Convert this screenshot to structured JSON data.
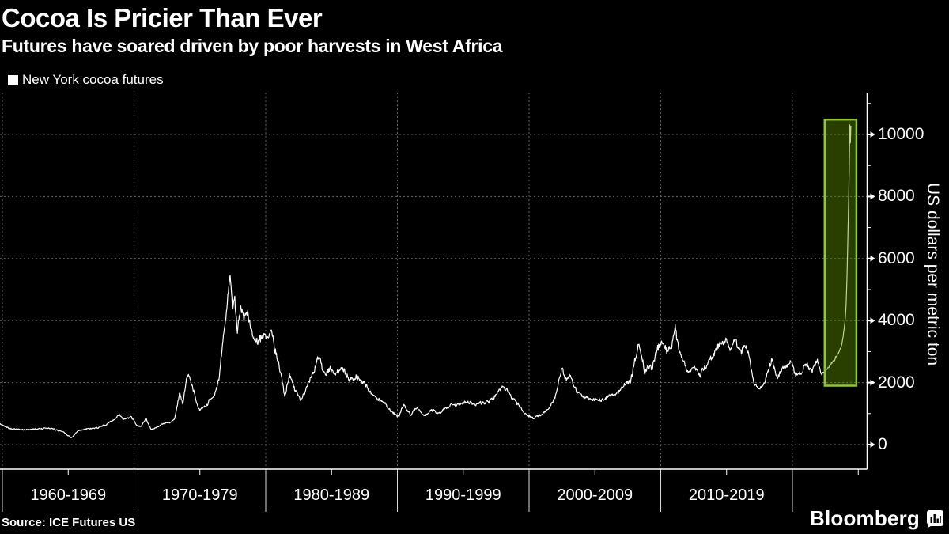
{
  "title": "Cocoa Is Pricier Than Ever",
  "subtitle": "Futures have soared driven by poor harvests in West Africa",
  "legend": {
    "label": "New York cocoa futures",
    "swatch_color": "#ffffff"
  },
  "source": "Source: ICE Futures US",
  "brand": {
    "name": "Bloomberg",
    "icon": "bar-chart-bubble-icon"
  },
  "colors": {
    "background": "#000000",
    "text": "#ffffff",
    "grid": "#646464",
    "line": "#ffffff",
    "axis": "#ffffff",
    "highlight_border": "#8dc63f",
    "highlight_fill": "#5f9600"
  },
  "chart_data": {
    "type": "line",
    "series": [
      {
        "name": "New York cocoa futures",
        "color": "#ffffff"
      }
    ],
    "title": "Cocoa Is Pricier Than Ever",
    "subtitle": "Futures have soared driven by poor harvests in West Africa",
    "ylabel": "US dollars per metric ton",
    "xlabel": "",
    "grid": true,
    "legend_position": "top-left",
    "ylim": [
      0,
      11350
    ],
    "y_ticks": [
      0,
      2000,
      4000,
      6000,
      8000,
      10000
    ],
    "y_minor_ticks": [
      1000,
      3000,
      5000,
      7000,
      9000,
      11000
    ],
    "x_range_years": [
      1959.8,
      2024.44
    ],
    "decades": [
      {
        "start": 1960,
        "label": "1960-1969"
      },
      {
        "start": 1970,
        "label": "1970-1979"
      },
      {
        "start": 1980,
        "label": "1980-1989"
      },
      {
        "start": 1990,
        "label": "1990-1999"
      },
      {
        "start": 2000,
        "label": "2000-2009"
      },
      {
        "start": 2010,
        "label": "2010-2019"
      },
      {
        "start": 2020,
        "label": ""
      }
    ],
    "highlight_box": {
      "year_start": 2022.45,
      "year_end": 2024.86,
      "value_low": 1900,
      "value_high": 10480
    },
    "anchors": [
      [
        1959.8,
        660
      ],
      [
        1960.3,
        580
      ],
      [
        1961,
        500
      ],
      [
        1961.8,
        470
      ],
      [
        1962.5,
        510
      ],
      [
        1963.2,
        540
      ],
      [
        1964,
        470
      ],
      [
        1964.6,
        430
      ],
      [
        1965.25,
        230
      ],
      [
        1965.7,
        420
      ],
      [
        1966.3,
        490
      ],
      [
        1967,
        550
      ],
      [
        1967.8,
        620
      ],
      [
        1968.5,
        800
      ],
      [
        1968.8,
        950
      ],
      [
        1969.2,
        840
      ],
      [
        1969.7,
        910
      ],
      [
        1970.2,
        620
      ],
      [
        1970.5,
        560
      ],
      [
        1970.9,
        790
      ],
      [
        1971.3,
        490
      ],
      [
        1971.9,
        560
      ],
      [
        1972.6,
        690
      ],
      [
        1973.1,
        850
      ],
      [
        1973.45,
        1600
      ],
      [
        1973.7,
        1280
      ],
      [
        1974.1,
        2400
      ],
      [
        1974.5,
        1850
      ],
      [
        1975.0,
        1120
      ],
      [
        1975.5,
        1320
      ],
      [
        1976.0,
        1520
      ],
      [
        1976.45,
        2150
      ],
      [
        1976.75,
        3300
      ],
      [
        1977.05,
        4650
      ],
      [
        1977.3,
        5360
      ],
      [
        1977.5,
        4250
      ],
      [
        1977.65,
        4600
      ],
      [
        1977.85,
        3750
      ],
      [
        1978.1,
        4300
      ],
      [
        1978.35,
        3850
      ],
      [
        1978.6,
        4150
      ],
      [
        1979.0,
        3500
      ],
      [
        1979.4,
        3280
      ],
      [
        1979.8,
        3480
      ],
      [
        1980.2,
        3300
      ],
      [
        1980.55,
        3420
      ],
      [
        1981.0,
        2550
      ],
      [
        1981.45,
        1580
      ],
      [
        1981.8,
        2280
      ],
      [
        1982.2,
        1830
      ],
      [
        1982.65,
        1480
      ],
      [
        1983.1,
        1850
      ],
      [
        1983.6,
        2250
      ],
      [
        1984.05,
        2800
      ],
      [
        1984.5,
        2380
      ],
      [
        1984.9,
        2620
      ],
      [
        1985.3,
        2230
      ],
      [
        1985.8,
        2420
      ],
      [
        1986.3,
        2080
      ],
      [
        1986.9,
        2180
      ],
      [
        1987.4,
        2020
      ],
      [
        1988.0,
        1690
      ],
      [
        1988.6,
        1480
      ],
      [
        1989.2,
        1270
      ],
      [
        1989.8,
        1020
      ],
      [
        1990.1,
        910
      ],
      [
        1990.5,
        1270
      ],
      [
        1991.0,
        990
      ],
      [
        1991.5,
        1170
      ],
      [
        1992.0,
        890
      ],
      [
        1992.6,
        1090
      ],
      [
        1993.1,
        980
      ],
      [
        1993.7,
        1230
      ],
      [
        1994.2,
        1380
      ],
      [
        1994.8,
        1290
      ],
      [
        1995.4,
        1420
      ],
      [
        1996.0,
        1330
      ],
      [
        1996.7,
        1390
      ],
      [
        1997.3,
        1520
      ],
      [
        1998.0,
        1760
      ],
      [
        1998.6,
        1620
      ],
      [
        1999.2,
        1340
      ],
      [
        1999.8,
        980
      ],
      [
        2000.3,
        800
      ],
      [
        2000.9,
        940
      ],
      [
        2001.5,
        1150
      ],
      [
        2002.0,
        1650
      ],
      [
        2002.5,
        2320
      ],
      [
        2002.8,
        2040
      ],
      [
        2003.1,
        2330
      ],
      [
        2003.6,
        1850
      ],
      [
        2004.2,
        1480
      ],
      [
        2004.8,
        1560
      ],
      [
        2005.4,
        1460
      ],
      [
        2006.0,
        1560
      ],
      [
        2006.6,
        1580
      ],
      [
        2007.2,
        1880
      ],
      [
        2007.7,
        2080
      ],
      [
        2008.1,
        2850
      ],
      [
        2008.35,
        3230
      ],
      [
        2008.8,
        2320
      ],
      [
        2009.3,
        2650
      ],
      [
        2009.8,
        3100
      ],
      [
        2010.05,
        3440
      ],
      [
        2010.45,
        2880
      ],
      [
        2010.8,
        3050
      ],
      [
        2011.1,
        3720
      ],
      [
        2011.5,
        2950
      ],
      [
        2012.0,
        2280
      ],
      [
        2012.5,
        2420
      ],
      [
        2013.0,
        2210
      ],
      [
        2013.6,
        2520
      ],
      [
        2014.1,
        2950
      ],
      [
        2014.6,
        3200
      ],
      [
        2014.95,
        3360
      ],
      [
        2015.3,
        2950
      ],
      [
        2015.7,
        3320
      ],
      [
        2016.05,
        3080
      ],
      [
        2016.35,
        3230
      ],
      [
        2016.7,
        2750
      ],
      [
        2017.05,
        2150
      ],
      [
        2017.5,
        1830
      ],
      [
        2017.9,
        2010
      ],
      [
        2018.25,
        2540
      ],
      [
        2018.45,
        2830
      ],
      [
        2018.75,
        2220
      ],
      [
        2019.2,
        2360
      ],
      [
        2019.6,
        2480
      ],
      [
        2019.95,
        2760
      ],
      [
        2020.25,
        2290
      ],
      [
        2020.7,
        2420
      ],
      [
        2021.1,
        2560
      ],
      [
        2021.5,
        2440
      ],
      [
        2021.9,
        2620
      ],
      [
        2022.2,
        2310
      ],
      [
        2022.6,
        2420
      ],
      [
        2023.0,
        2620
      ],
      [
        2023.35,
        2850
      ],
      [
        2023.65,
        3100
      ],
      [
        2023.85,
        3500
      ],
      [
        2024.0,
        4000
      ],
      [
        2024.08,
        4500
      ],
      [
        2024.14,
        5300
      ],
      [
        2024.2,
        6400
      ],
      [
        2024.26,
        7600
      ],
      [
        2024.31,
        8800
      ],
      [
        2024.36,
        10340
      ],
      [
        2024.4,
        9750
      ],
      [
        2024.44,
        10280
      ]
    ]
  }
}
